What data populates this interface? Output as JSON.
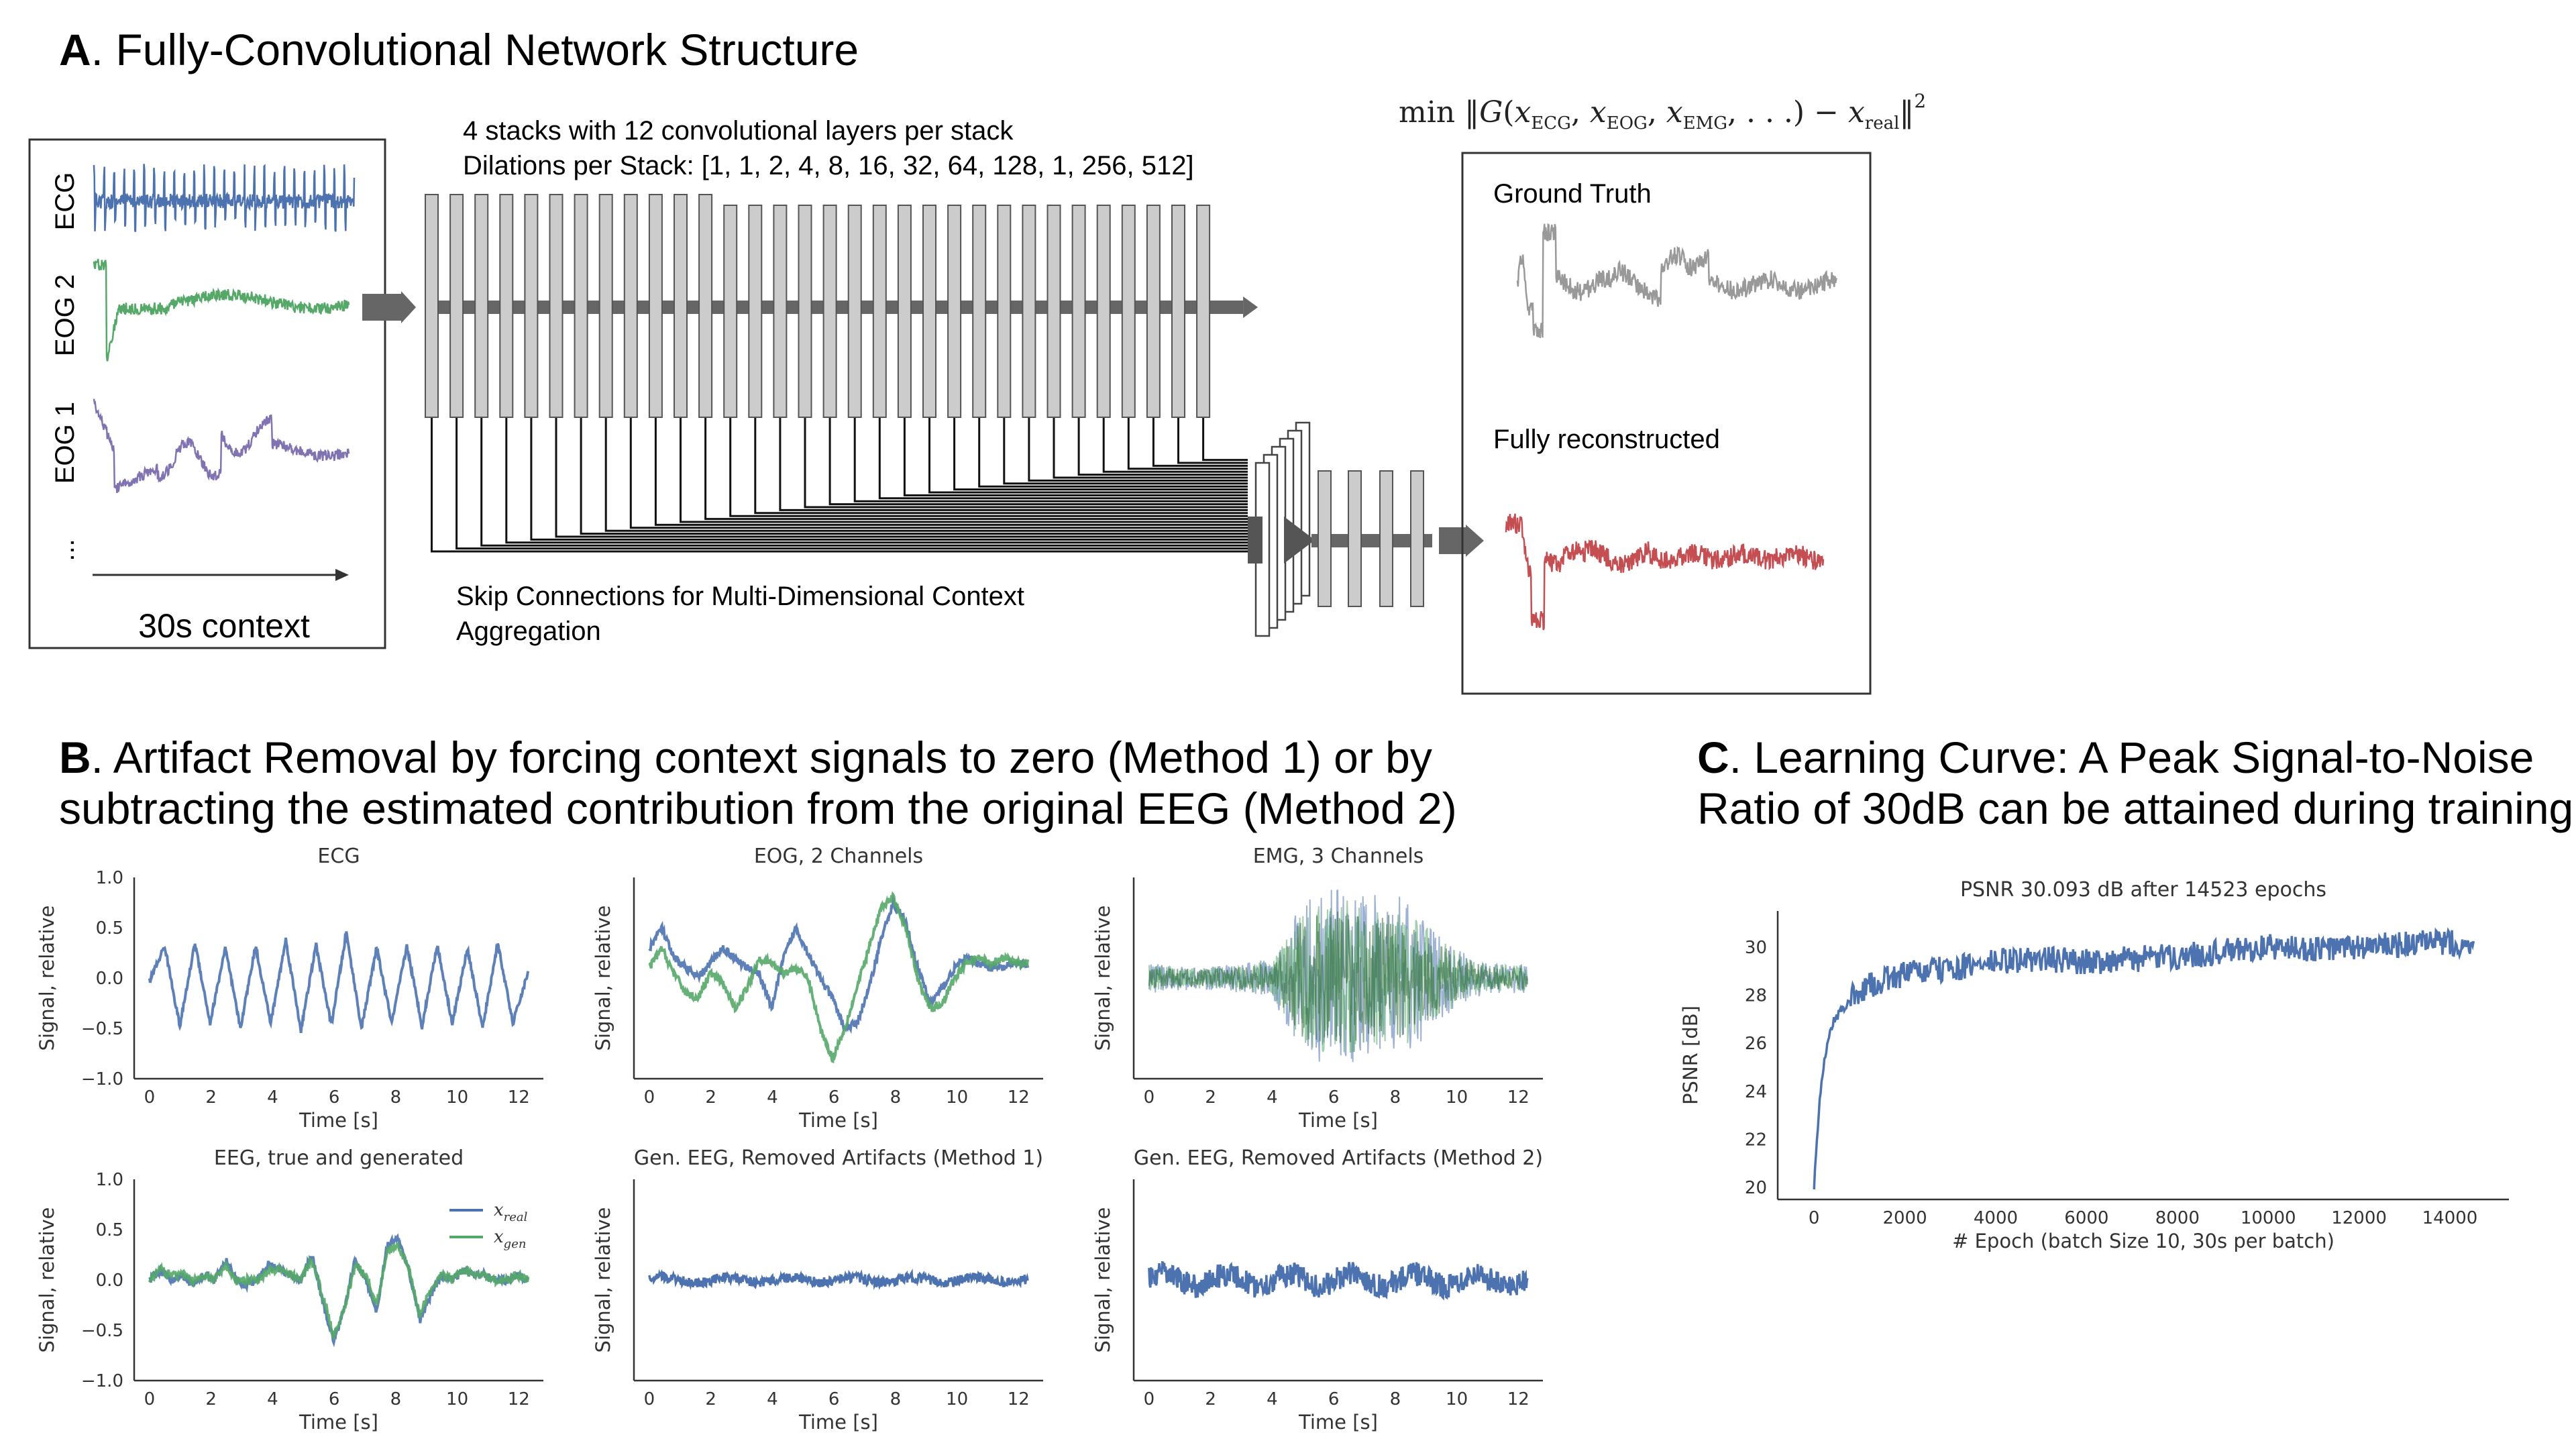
{
  "panel_a": {
    "letter": "A",
    "title": ". Fully-Convolutional Network Structure",
    "input_channels": [
      "ECG",
      "EOG 2",
      "EOG 1"
    ],
    "ellipsis": "...",
    "context_label": "30s context",
    "stacks_line1": "4 stacks with 12 convolutional layers per stack",
    "stacks_line2": "Dilations per Stack: [1, 1, 2, 4, 8, 16, 32, 64, 128, 1, 256, 512]",
    "skip_line1": "Skip Connections for Multi-Dimensional Context",
    "skip_line2": "Aggregation",
    "formula": "min ||G(xECG, xEOG, xEMG, ...) − xreal||²",
    "ground_truth_label": "Ground Truth",
    "reconstructed_label": "Fully reconstructed",
    "colors": {
      "ecg": "#4c72b0",
      "eog2": "#55a868",
      "eog1": "#8172b2",
      "truth": "#999999",
      "recon": "#c44e52",
      "layer": "#cccccc"
    }
  },
  "panel_b": {
    "letter": "B",
    "title_line1": ". Artifact Removal by forcing context signals to zero (Method 1) or by",
    "title_line2": "subtracting the estimated contribution from the original EEG (Method 2)"
  },
  "panel_c": {
    "letter": "C",
    "title_line1": ". Learning Curve: A Peak Signal-to-Noise",
    "title_line2": "Ratio of 30dB can be attained during training"
  },
  "chart_data": [
    {
      "id": "ecg",
      "type": "line",
      "title": "ECG",
      "xlabel": "Time [s]",
      "ylabel": "Signal, relative",
      "xlim": [
        -0.5,
        12.8
      ],
      "ylim": [
        -1.0,
        1.0
      ],
      "xticks": [
        0,
        2,
        4,
        6,
        8,
        10,
        12
      ],
      "yticks": [
        -1.0,
        -0.5,
        0.0,
        0.5,
        1.0
      ],
      "ytick_labels": [
        "−1.0",
        "−0.5",
        "0.0",
        "0.5",
        "1.0"
      ],
      "series": [
        {
          "values": [
            -0.03,
            0.32,
            -0.48,
            0.35,
            -0.45,
            0.3,
            -0.5,
            0.32,
            -0.45,
            0.38,
            -0.52,
            0.33,
            -0.47,
            0.45,
            -0.5,
            0.3,
            -0.45,
            0.32,
            -0.48,
            0.33,
            -0.45,
            0.3,
            -0.5,
            0.35,
            -0.45,
            0.05
          ],
          "color": "#4c72b0"
        }
      ]
    },
    {
      "id": "eog",
      "type": "line",
      "title": "EOG, 2 Channels",
      "xlabel": "Time [s]",
      "ylabel": "Signal, relative",
      "xlim": [
        -0.5,
        12.8
      ],
      "ylim": [
        -1.0,
        1.0
      ],
      "xticks": [
        0,
        2,
        4,
        6,
        8,
        10,
        12
      ],
      "yticks": [],
      "ytick_labels": [],
      "series": [
        {
          "values": [
            0.3,
            0.5,
            0.2,
            0.1,
            0.0,
            0.15,
            0.3,
            0.2,
            0.1,
            0.05,
            -0.3,
            0.2,
            0.5,
            0.25,
            0.0,
            -0.2,
            -0.5,
            -0.45,
            -0.1,
            0.4,
            0.75,
            0.55,
            0.1,
            -0.25,
            -0.1,
            0.1,
            0.2,
            0.15,
            0.1,
            0.1,
            0.15,
            0.12
          ],
          "color": "#4c72b0"
        },
        {
          "values": [
            0.1,
            0.3,
            0.05,
            -0.15,
            -0.2,
            0.05,
            -0.05,
            -0.3,
            -0.1,
            0.2,
            0.15,
            0.05,
            0.1,
            0.0,
            -0.5,
            -0.8,
            -0.5,
            -0.1,
            0.3,
            0.7,
            0.8,
            0.5,
            0.0,
            -0.3,
            -0.25,
            0.0,
            0.15,
            0.2,
            0.15,
            0.2,
            0.15,
            0.15
          ],
          "color": "#55a868"
        }
      ]
    },
    {
      "id": "emg",
      "type": "line",
      "title": "EMG, 3 Channels",
      "xlabel": "Time [s]",
      "ylabel": "Signal, relative",
      "xlim": [
        -0.5,
        12.8
      ],
      "ylim": [
        -1.0,
        1.0
      ],
      "xticks": [
        0,
        2,
        4,
        6,
        8,
        10,
        12
      ],
      "yticks": [],
      "ytick_labels": [],
      "envelope": {
        "x": [
          0,
          1,
          2,
          3,
          4,
          4.5,
          5,
          6,
          7,
          8,
          9,
          10,
          11,
          12.3
        ],
        "amp": [
          0.15,
          0.12,
          0.12,
          0.15,
          0.2,
          0.5,
          0.8,
          0.9,
          0.85,
          0.85,
          0.6,
          0.3,
          0.15,
          0.15
        ]
      },
      "series": [
        {
          "color": "#4c72b0"
        },
        {
          "color": "#55a868"
        },
        {
          "color": "#2f6b3a"
        }
      ]
    },
    {
      "id": "eeg",
      "type": "line",
      "title": "EEG, true and generated",
      "xlabel": "Time [s]",
      "ylabel": "Signal, relative",
      "xlim": [
        -0.5,
        12.8
      ],
      "ylim": [
        -1.0,
        1.0
      ],
      "xticks": [
        0,
        2,
        4,
        6,
        8,
        10,
        12
      ],
      "yticks": [
        -1.0,
        -0.5,
        0.0,
        0.5,
        1.0
      ],
      "ytick_labels": [
        "−1.0",
        "−0.5",
        "0.0",
        "0.5",
        "1.0"
      ],
      "legend": "top-right",
      "series": [
        {
          "name": "x_real",
          "values": [
            0.0,
            0.1,
            0.0,
            0.05,
            -0.05,
            0.05,
            0.0,
            0.2,
            0.0,
            -0.05,
            0.0,
            0.15,
            0.1,
            0.05,
            0.0,
            0.25,
            -0.2,
            -0.6,
            -0.3,
            0.2,
            0.0,
            -0.3,
            0.35,
            0.4,
            0.1,
            -0.4,
            -0.15,
            0.05,
            0.0,
            0.1,
            0.05,
            0.05,
            0.0,
            0.0,
            0.05,
            0.0
          ],
          "color": "#4c72b0"
        },
        {
          "name": "x_gen",
          "values": [
            0.0,
            0.1,
            0.05,
            0.05,
            0.0,
            0.05,
            0.0,
            0.15,
            0.0,
            0.0,
            0.0,
            0.1,
            0.1,
            0.05,
            0.0,
            0.2,
            -0.15,
            -0.55,
            -0.3,
            0.15,
            0.05,
            -0.25,
            0.3,
            0.35,
            0.1,
            -0.35,
            -0.1,
            0.05,
            0.0,
            0.1,
            0.05,
            0.05,
            0.0,
            0.0,
            0.05,
            0.0
          ],
          "color": "#55a868"
        }
      ]
    },
    {
      "id": "gen1",
      "type": "line",
      "title": "Gen. EEG, Removed Artifacts (Method 1)",
      "xlabel": "Time [s]",
      "ylabel": "Signal, relative",
      "xlim": [
        -0.5,
        12.8
      ],
      "ylim": [
        -1.0,
        1.0
      ],
      "xticks": [
        0,
        2,
        4,
        6,
        8,
        10,
        12
      ],
      "yticks": [],
      "ytick_labels": [],
      "noise_amp": 0.05,
      "series": [
        {
          "color": "#4c72b0"
        }
      ]
    },
    {
      "id": "gen2",
      "type": "line",
      "title": "Gen. EEG, Removed Artifacts (Method 2)",
      "xlabel": "Time [s]",
      "ylabel": "Signal, relative",
      "xlim": [
        -0.5,
        12.8
      ],
      "ylim": [
        -1.0,
        1.0
      ],
      "xticks": [
        0,
        2,
        4,
        6,
        8,
        10,
        12
      ],
      "yticks": [],
      "ytick_labels": [],
      "noise_amp": 0.12,
      "series": [
        {
          "color": "#4c72b0"
        }
      ]
    },
    {
      "id": "psnr",
      "type": "line",
      "title": "PSNR 30.093 dB after 14523 epochs",
      "xlabel": "# Epoch (batch Size 10, 30s per batch)",
      "ylabel": "PSNR [dB]",
      "xlim": [
        -800,
        15300
      ],
      "ylim": [
        19.5,
        31.5
      ],
      "xticks": [
        0,
        2000,
        4000,
        6000,
        8000,
        10000,
        12000,
        14000
      ],
      "yticks": [
        20,
        22,
        24,
        26,
        28,
        30
      ],
      "x": [
        0,
        100,
        200,
        400,
        700,
        1000,
        1500,
        2000,
        2500,
        3000,
        3500,
        4000,
        5000,
        6000,
        7000,
        8000,
        9000,
        10000,
        11000,
        12000,
        13000,
        14000,
        14523
      ],
      "values": [
        20.1,
        23.0,
        25.0,
        26.8,
        27.6,
        28.2,
        28.6,
        28.9,
        29.0,
        29.1,
        29.2,
        29.4,
        29.5,
        29.4,
        29.5,
        29.6,
        29.8,
        30.0,
        29.9,
        30.0,
        30.1,
        30.2,
        30.09
      ],
      "series": [
        {
          "color": "#4c72b0"
        }
      ]
    }
  ]
}
